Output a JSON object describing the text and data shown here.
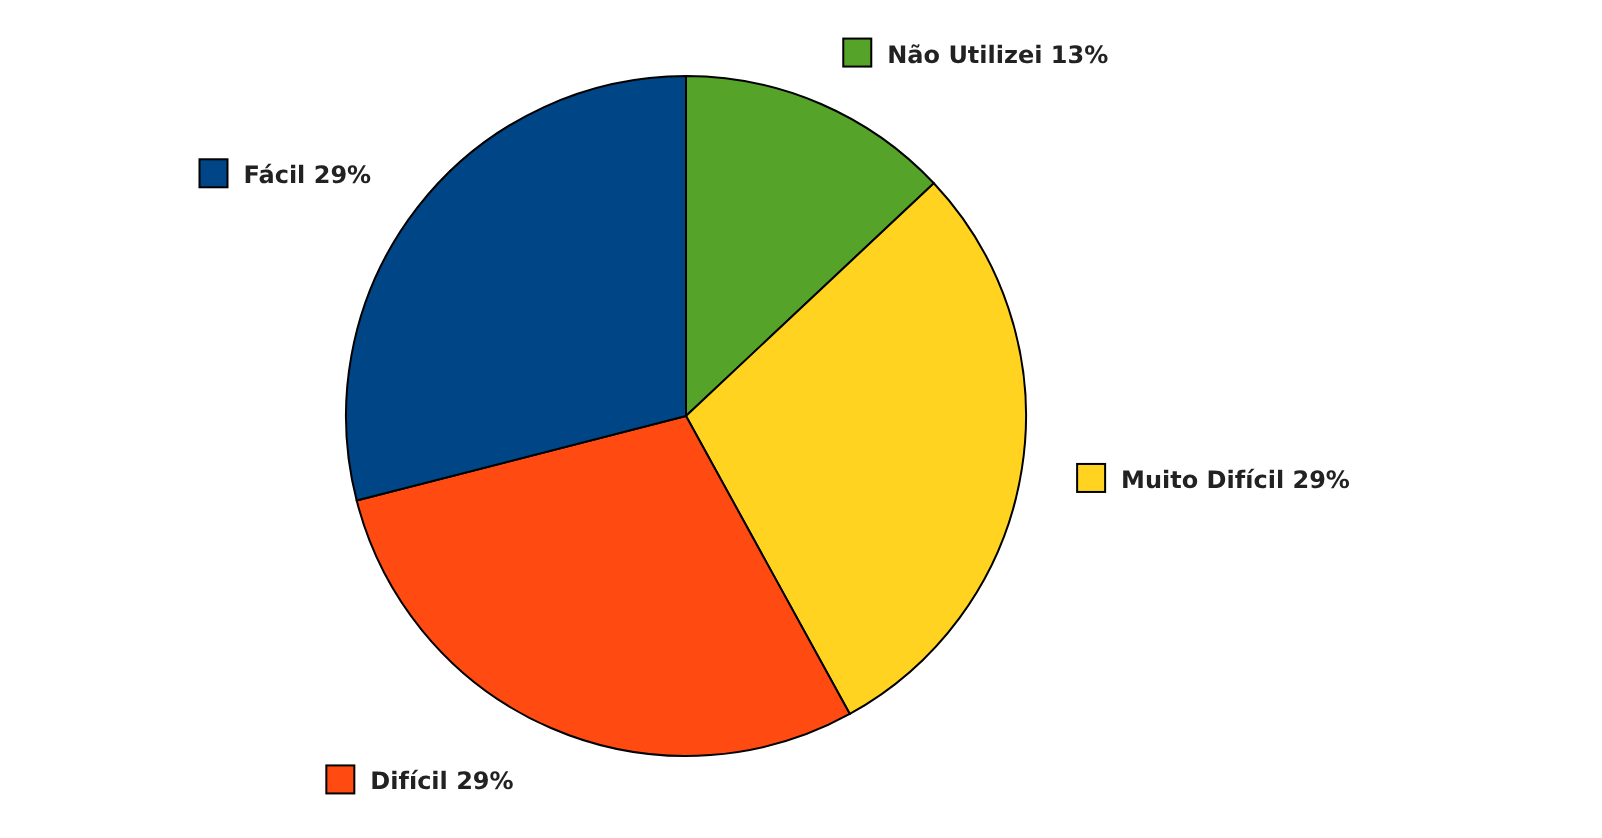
{
  "chart_data": {
    "type": "pie",
    "categories": [
      "Não Utilizei",
      "Muito Difícil",
      "Difícil",
      "Fácil"
    ],
    "values": [
      13,
      29,
      29,
      29
    ],
    "value_labels": [
      "13%",
      "29%",
      "29%",
      "29%"
    ],
    "colors": [
      "#56a32a",
      "#ffd320",
      "#ff4a12",
      "#004586"
    ],
    "legend": "right"
  }
}
